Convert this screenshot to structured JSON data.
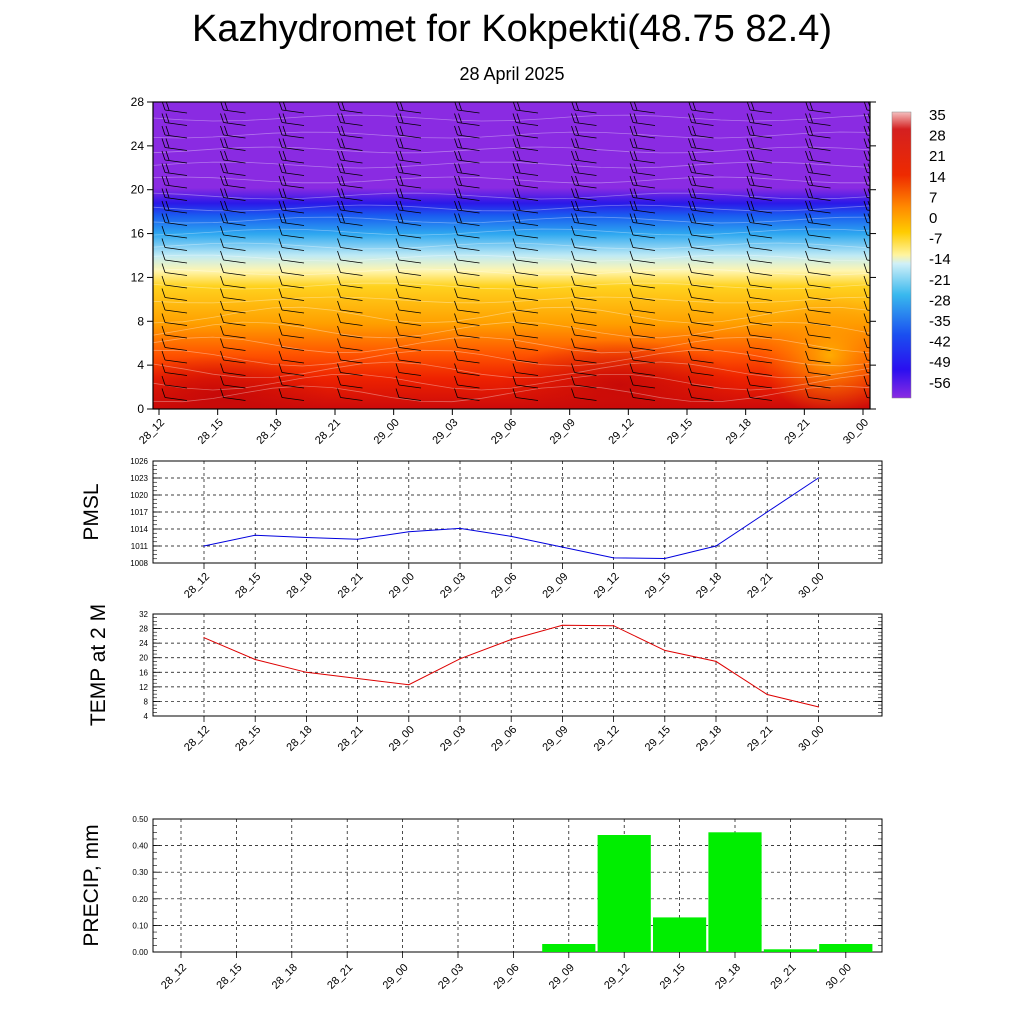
{
  "title": "Kazhydromet for Kokpekti(48.75 82.4)",
  "subtitle": "28 April 2025",
  "colors": {
    "pmsl_line": "#0000dd",
    "temp_line": "#dd0000",
    "precip_bar": "#00ee00",
    "barb": "#000000"
  },
  "time_labels": [
    "28_12",
    "28_15",
    "28_18",
    "28_21",
    "29_00",
    "29_03",
    "29_06",
    "29_09",
    "29_12",
    "29_15",
    "29_18",
    "29_21",
    "30_00"
  ],
  "chart_data": [
    {
      "type": "heatmap",
      "name_hint": "cross-section",
      "x": [
        "28_12",
        "28_15",
        "28_18",
        "28_21",
        "29_00",
        "29_03",
        "29_06",
        "29_09",
        "29_12",
        "29_15",
        "29_18",
        "29_21",
        "30_00"
      ],
      "ylim": [
        0,
        28
      ],
      "y_ticks": [
        0,
        4,
        8,
        12,
        16,
        20,
        24,
        28
      ],
      "colorbar_labels": [
        "35",
        "28",
        "21",
        "14",
        "7",
        "0",
        "-7",
        "-14",
        "-21",
        "-28",
        "-35",
        "-42",
        "-49",
        "-56"
      ],
      "colorbar_range": [
        -60,
        40
      ],
      "barbs": "wind barbs plotted at every time and level",
      "grid": false
    },
    {
      "type": "line",
      "ylabel": "PMSL",
      "categories": [
        "28_12",
        "28_15",
        "28_18",
        "28_21",
        "29_00",
        "29_03",
        "29_06",
        "29_09",
        "29_12",
        "29_15",
        "29_18",
        "29_21",
        "30_00"
      ],
      "values": [
        1011,
        1012.9,
        1012.5,
        1012.2,
        1013.5,
        1014.1,
        1012.7,
        1010.8,
        1008.9,
        1008.8,
        1011,
        1017,
        1023
      ],
      "ylim": [
        1008,
        1026
      ],
      "y_ticks": [
        "1008",
        "1011",
        "1014",
        "1017",
        "1020",
        "1023",
        "1026"
      ],
      "grid": true
    },
    {
      "type": "line",
      "ylabel": "TEMP at 2 M",
      "categories": [
        "28_12",
        "28_15",
        "28_18",
        "28_21",
        "29_00",
        "29_03",
        "29_06",
        "29_09",
        "29_12",
        "29_15",
        "29_18",
        "29_21",
        "30_00"
      ],
      "values": [
        25.5,
        19.5,
        16,
        14.3,
        12.6,
        19.7,
        25,
        28.9,
        28.8,
        22,
        19,
        9.9,
        6.5
      ],
      "ylim": [
        4,
        32
      ],
      "y_ticks": [
        "4",
        "8",
        "12",
        "16",
        "20",
        "24",
        "28",
        "32"
      ],
      "grid": true
    },
    {
      "type": "bar",
      "ylabel": "PRECIP, mm",
      "categories": [
        "28_12",
        "28_15",
        "28_18",
        "28_21",
        "29_00",
        "29_03",
        "29_06",
        "29_09",
        "29_12",
        "29_15",
        "29_18",
        "29_21",
        "30_00"
      ],
      "values": [
        0,
        0,
        0,
        0,
        0,
        0,
        0,
        0.03,
        0.44,
        0.13,
        0.45,
        0.01,
        0.03
      ],
      "ylim": [
        0,
        0.5
      ],
      "y_ticks": [
        "0.00",
        "0.10",
        "0.20",
        "0.30",
        "0.40",
        "0.50"
      ],
      "grid": true
    }
  ]
}
